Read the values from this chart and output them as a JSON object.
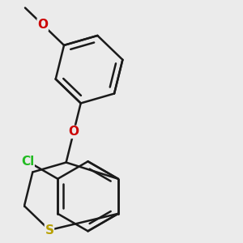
{
  "background_color": "#ebebeb",
  "bond_color": "#1a1a1a",
  "bond_lw": 1.8,
  "S_color": "#b8a000",
  "O_color": "#cc0000",
  "Cl_color": "#22bb22",
  "fs": 11,
  "fw": "bold",
  "fig_w": 3.0,
  "fig_h": 3.0,
  "dpi": 100,
  "xlim": [
    -0.3,
    2.8
  ],
  "ylim": [
    -0.2,
    3.6
  ]
}
